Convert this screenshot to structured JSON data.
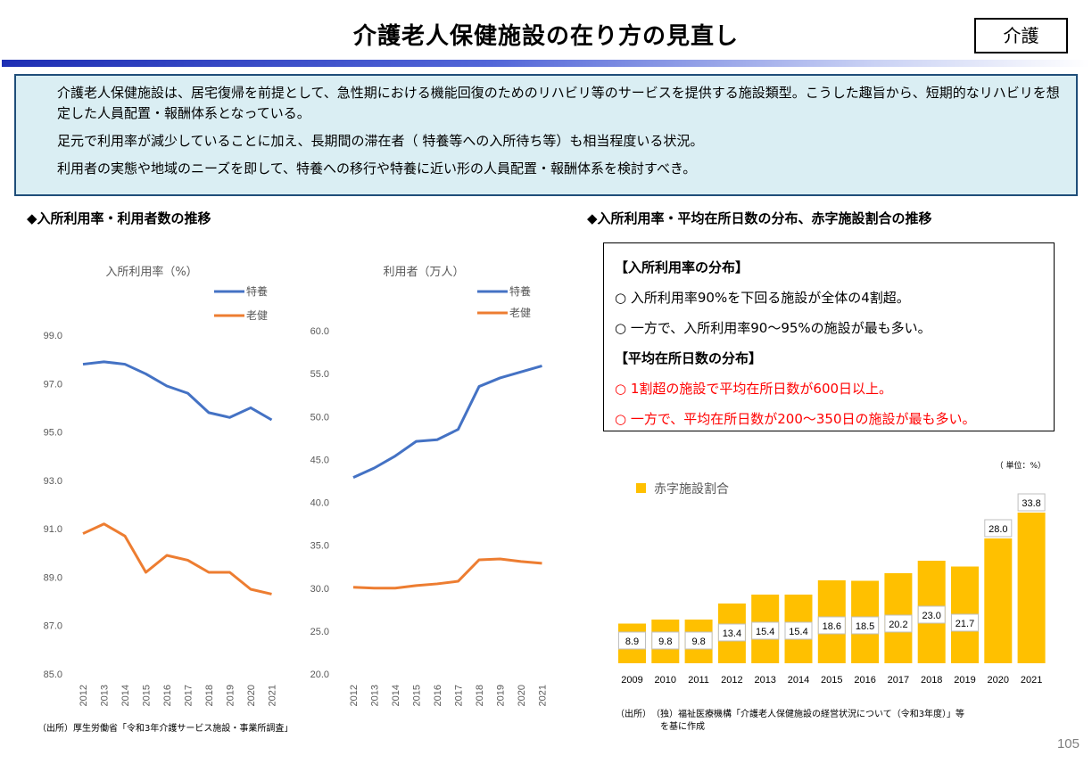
{
  "header": {
    "title": "介護老人保健施設の在り方の見直し",
    "tag": "介護"
  },
  "summary": {
    "bullet_mark": "",
    "items": [
      "介護老人保健施設は、居宅復帰を前提として、急性期における機能回復のためのリハビリ等のサービスを提供する施設類型。こうした趣旨から、短期的なリハビリを想定した人員配置・報酬体系となっている。",
      "足元で利用率が減少していることに加え、長期間の滞在者（ 特養等への入所待ち等）も相当程度いる状況。",
      "利用者の実態や地域のニーズを即して、特養への移行や特養に近い形の人員配置・報酬体系を検討すべき。"
    ]
  },
  "left_section": {
    "heading": "◆入所利用率・利用者数の推移",
    "source": "（出所）厚生労働省「令和3年介護サービス施設・事業所調査」"
  },
  "right_section": {
    "heading": "◆入所利用率・平均在所日数の分布、赤字施設割合の推移",
    "notes": [
      {
        "text": "【入所利用率の分布】",
        "style": "head"
      },
      {
        "text": "○ 入所利用率90%を下回る施設が全体の4割超。",
        "style": "normal"
      },
      {
        "text": "○ 一方で、入所利用率90～95%の施設が最も多い。",
        "style": "normal"
      },
      {
        "text": "【平均在所日数の分布】",
        "style": "head"
      },
      {
        "text": "○ 1割超の施設で平均在所日数が600日以上。",
        "style": "red"
      },
      {
        "text": "○ 一方で、平均在所日数が200～350日の施設が最も多い。",
        "style": "red"
      }
    ],
    "unit_label": "（ 単位：%）",
    "source_line1": "（出所）　（独）福祉医療機構「介護老人保健施設の経営状況について（令和3年度）」等",
    "source_line2": "を基に作成"
  },
  "colors": {
    "tokuyo": "#4472c4",
    "roken": "#ed7d31",
    "bar": "#ffc000"
  },
  "chart_data": [
    {
      "type": "line",
      "title": "入所利用率（%）",
      "x": [
        "2012",
        "2013",
        "2014",
        "2015",
        "2016",
        "2017",
        "2018",
        "2019",
        "2020",
        "2021"
      ],
      "series": [
        {
          "name": "特養",
          "values": [
            97.8,
            97.9,
            97.8,
            97.4,
            96.9,
            96.6,
            95.8,
            95.6,
            96.0,
            95.5
          ]
        },
        {
          "name": "老健",
          "values": [
            90.8,
            91.2,
            90.7,
            89.2,
            89.9,
            89.7,
            89.2,
            89.2,
            88.5,
            88.3
          ]
        }
      ],
      "ylim": [
        85.0,
        99.0
      ],
      "yticks": [
        "85.0",
        "87.0",
        "89.0",
        "91.0",
        "93.0",
        "95.0",
        "97.0",
        "99.0"
      ],
      "legend": "top-right",
      "grid": false
    },
    {
      "type": "line",
      "title": "利用者（万人）",
      "x": [
        "2012",
        "2013",
        "2014",
        "2015",
        "2016",
        "2017",
        "2018",
        "2019",
        "2020",
        "2021"
      ],
      "series": [
        {
          "name": "特養",
          "values": [
            42.9,
            44.0,
            45.4,
            47.1,
            47.3,
            48.5,
            53.5,
            54.5,
            55.2,
            55.9
          ]
        },
        {
          "name": "老健",
          "values": [
            30.1,
            30.0,
            30.0,
            30.3,
            30.5,
            30.8,
            33.3,
            33.4,
            33.1,
            32.9
          ]
        }
      ],
      "ylim": [
        20.0,
        60.0
      ],
      "yticks": [
        "20.0",
        "25.0",
        "30.0",
        "35.0",
        "40.0",
        "45.0",
        "50.0",
        "55.0",
        "60.0"
      ],
      "legend": "top-right",
      "grid": false
    },
    {
      "type": "bar",
      "categories": [
        "2009",
        "2010",
        "2011",
        "2012",
        "2013",
        "2014",
        "2015",
        "2016",
        "2017",
        "2018",
        "2019",
        "2020",
        "2021"
      ],
      "series": [
        {
          "name": "赤字施設割合",
          "values": [
            8.9,
            9.8,
            9.8,
            13.4,
            15.4,
            15.4,
            18.6,
            18.5,
            20.2,
            23.0,
            21.7,
            28.0,
            33.8
          ]
        }
      ],
      "labels": [
        "8.9",
        "9.8",
        "9.8",
        "13.4",
        "15.4",
        "15.4",
        "18.6",
        "18.5",
        "20.2",
        "23.0",
        "21.7",
        "28.0",
        "33.8"
      ],
      "legend": "top-left"
    }
  ],
  "page_number": "105"
}
